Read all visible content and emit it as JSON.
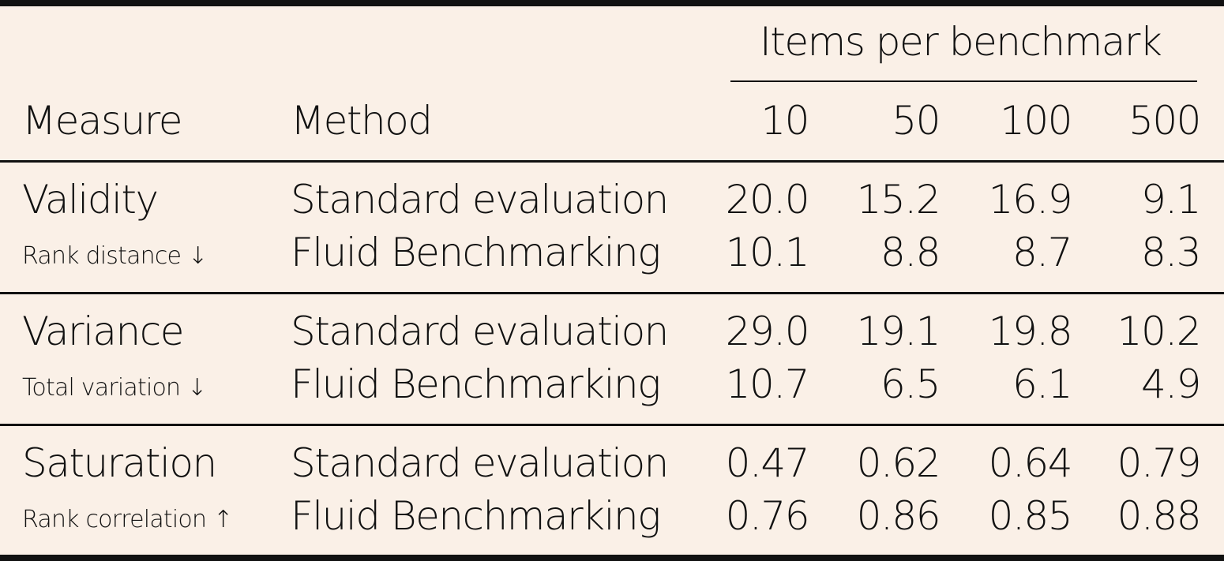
{
  "table": {
    "header": {
      "group_label": "Items per benchmark",
      "measure_label": "Measure",
      "method_label": "Method",
      "columns": [
        "10",
        "50",
        "100",
        "500"
      ]
    },
    "sections": [
      {
        "measure": "Validity",
        "metric": "Rank distance",
        "arrow": "↓",
        "rows": [
          {
            "method": "Standard evaluation",
            "values": [
              "20.0",
              "15.2",
              "16.9",
              "9.1"
            ]
          },
          {
            "method": "Fluid Benchmarking",
            "values": [
              "10.1",
              "8.8",
              "8.7",
              "8.3"
            ]
          }
        ]
      },
      {
        "measure": "Variance",
        "metric": "Total variation",
        "arrow": "↓",
        "rows": [
          {
            "method": "Standard evaluation",
            "values": [
              "29.0",
              "19.1",
              "19.8",
              "10.2"
            ]
          },
          {
            "method": "Fluid Benchmarking",
            "values": [
              "10.7",
              "6.5",
              "6.1",
              "4.9"
            ]
          }
        ]
      },
      {
        "measure": "Saturation",
        "metric": "Rank correlation",
        "arrow": "↑",
        "rows": [
          {
            "method": "Standard evaluation",
            "values": [
              "0.47",
              "0.62",
              "0.64",
              "0.79"
            ]
          },
          {
            "method": "Fluid Benchmarking",
            "values": [
              "0.76",
              "0.86",
              "0.85",
              "0.88"
            ]
          }
        ]
      }
    ]
  },
  "colors": {
    "background": "#faf0e7",
    "text": "#111111",
    "rules": "#111111"
  }
}
